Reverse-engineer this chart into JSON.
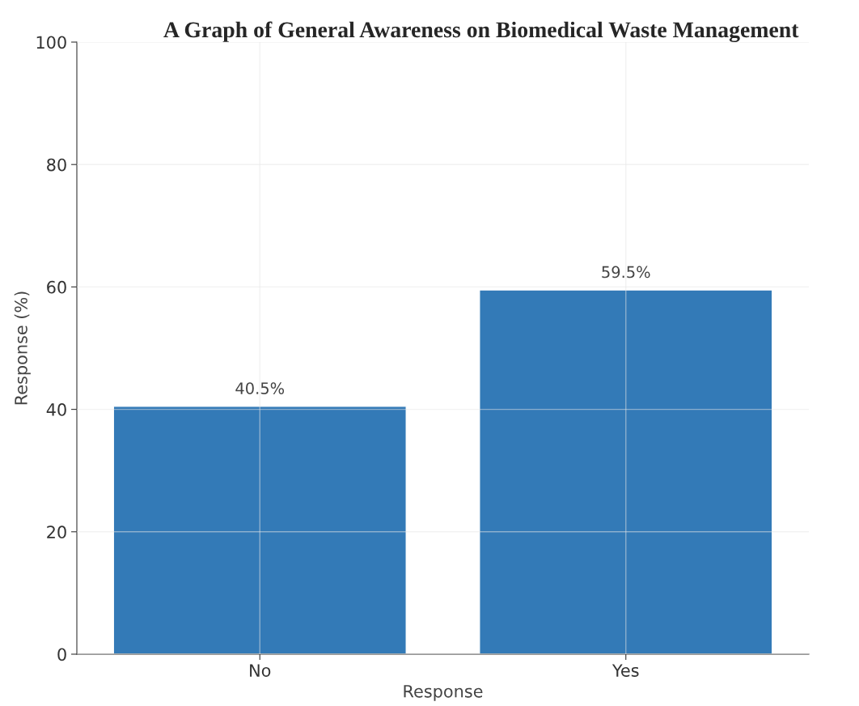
{
  "chart_data": {
    "type": "bar",
    "title": "A Graph of General Awareness on Biomedical Waste Management",
    "xlabel": "Response",
    "ylabel": "Response (%)",
    "categories": [
      "No",
      "Yes"
    ],
    "values": [
      40.5,
      59.5
    ],
    "color": "#337ab7",
    "value_labels": [
      "40.5%",
      "59.5%"
    ],
    "ylim": [
      0,
      100
    ],
    "yticks": [
      0,
      20,
      40,
      60,
      80,
      100
    ],
    "grid": true
  }
}
